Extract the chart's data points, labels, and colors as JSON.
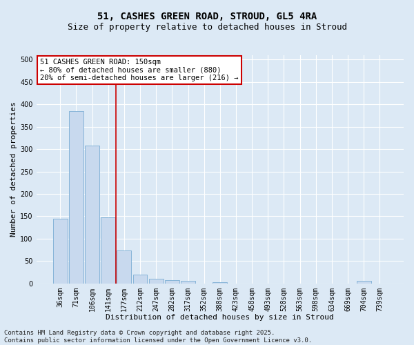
{
  "title_line1": "51, CASHES GREEN ROAD, STROUD, GL5 4RA",
  "title_line2": "Size of property relative to detached houses in Stroud",
  "xlabel": "Distribution of detached houses by size in Stroud",
  "ylabel": "Number of detached properties",
  "bar_color": "#c8d9ee",
  "bar_edge_color": "#7aadd4",
  "background_color": "#dce9f5",
  "fig_background_color": "#dce9f5",
  "grid_color": "#ffffff",
  "categories": [
    "36sqm",
    "71sqm",
    "106sqm",
    "141sqm",
    "177sqm",
    "212sqm",
    "247sqm",
    "282sqm",
    "317sqm",
    "352sqm",
    "388sqm",
    "423sqm",
    "458sqm",
    "493sqm",
    "528sqm",
    "563sqm",
    "598sqm",
    "634sqm",
    "669sqm",
    "704sqm",
    "739sqm"
  ],
  "values": [
    145,
    385,
    308,
    148,
    73,
    20,
    10,
    8,
    5,
    0,
    3,
    0,
    0,
    0,
    0,
    0,
    0,
    0,
    0,
    5,
    0
  ],
  "vline_x_idx": 3,
  "vline_color": "#cc0000",
  "annotation_text": "51 CASHES GREEN ROAD: 150sqm\n← 80% of detached houses are smaller (880)\n20% of semi-detached houses are larger (216) →",
  "annotation_box_color": "#ffffff",
  "annotation_box_edge": "#cc0000",
  "ylim": [
    0,
    510
  ],
  "yticks": [
    0,
    50,
    100,
    150,
    200,
    250,
    300,
    350,
    400,
    450,
    500
  ],
  "footnote": "Contains HM Land Registry data © Crown copyright and database right 2025.\nContains public sector information licensed under the Open Government Licence v3.0.",
  "title_fontsize": 10,
  "subtitle_fontsize": 9,
  "axis_label_fontsize": 8,
  "tick_fontsize": 7,
  "annotation_fontsize": 7.5,
  "footnote_fontsize": 6.5
}
